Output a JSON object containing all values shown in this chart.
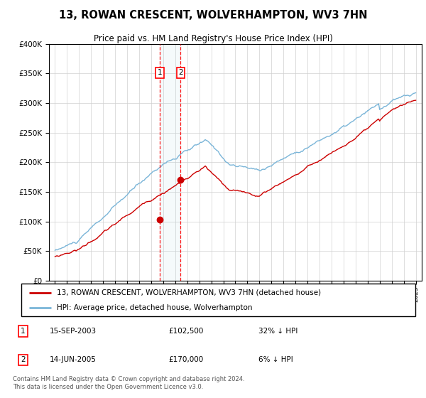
{
  "title": "13, ROWAN CRESCENT, WOLVERHAMPTON, WV3 7HN",
  "subtitle": "Price paid vs. HM Land Registry's House Price Index (HPI)",
  "legend_line1": "13, ROWAN CRESCENT, WOLVERHAMPTON, WV3 7HN (detached house)",
  "legend_line2": "HPI: Average price, detached house, Wolverhampton",
  "transaction1_label": "1",
  "transaction1_date": "15-SEP-2003",
  "transaction1_price": "£102,500",
  "transaction1_hpi": "32% ↓ HPI",
  "transaction2_label": "2",
  "transaction2_date": "14-JUN-2005",
  "transaction2_price": "£170,000",
  "transaction2_hpi": "6% ↓ HPI",
  "footnote": "Contains HM Land Registry data © Crown copyright and database right 2024.\nThis data is licensed under the Open Government Licence v3.0.",
  "hpi_color": "#7ab5d8",
  "price_color": "#cc0000",
  "marker1_x": 2003.71,
  "marker1_y": 102500,
  "marker2_x": 2005.45,
  "marker2_y": 170000,
  "ylim": [
    0,
    400000
  ],
  "xlim": [
    1994.5,
    2025.5
  ],
  "yticks": [
    0,
    50000,
    100000,
    150000,
    200000,
    250000,
    300000,
    350000,
    400000
  ],
  "xticks": [
    1995,
    1996,
    1997,
    1998,
    1999,
    2000,
    2001,
    2002,
    2003,
    2004,
    2005,
    2006,
    2007,
    2008,
    2009,
    2010,
    2011,
    2012,
    2013,
    2014,
    2015,
    2016,
    2017,
    2018,
    2019,
    2020,
    2021,
    2022,
    2023,
    2024,
    2025
  ]
}
